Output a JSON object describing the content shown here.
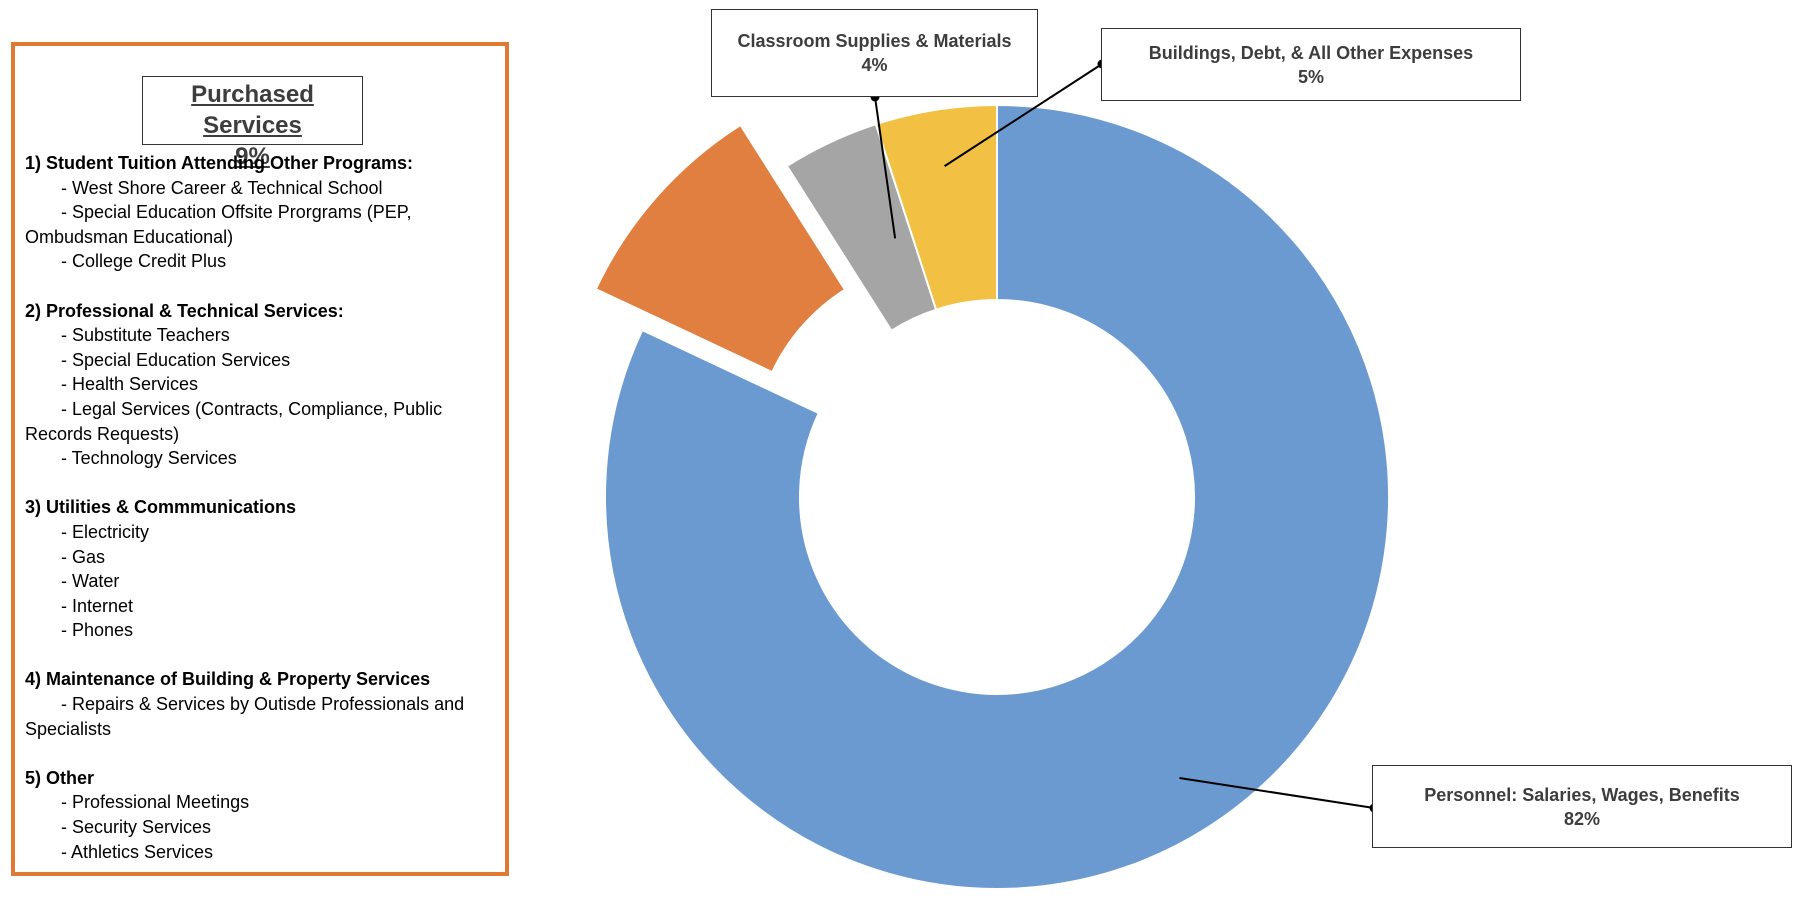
{
  "panel": {
    "title_line1": "Purchased Services",
    "title_line2": "9%",
    "sections": [
      {
        "title": "1) Student Tuition Attending Other Programs:",
        "items": [
          "- West Shore Career & Technical School",
          "- Special Education Offsite Prorgrams (PEP, Ombudsman Educational)",
          "- College Credit Plus"
        ]
      },
      {
        "title": "2) Professional & Technical Services:",
        "items": [
          "- Substitute Teachers",
          "- Special Education Services",
          "- Health Services",
          "- Legal Services (Contracts, Compliance, Public Records Requests)",
          "- Technology Services"
        ]
      },
      {
        "title": "3) Utilities & Commmunications",
        "items": [
          "- Electricity",
          "- Gas",
          "- Water",
          "- Internet",
          "- Phones"
        ]
      },
      {
        "title": "4) Maintenance of Building & Property Services",
        "items": [
          "- Repairs & Services by Outisde Professionals and Specialists"
        ]
      },
      {
        "title": "5) Other",
        "items": [
          "- Professional Meetings",
          "- Security Services",
          "- Athletics Services"
        ]
      }
    ]
  },
  "chart_data": {
    "type": "pie",
    "donut": true,
    "slices": [
      {
        "label": "Personnel: Salaries, Wages, Benefits",
        "value": 82,
        "display": "82%",
        "color": "#6B9AD1"
      },
      {
        "label": "Purchased Services",
        "value": 9,
        "display": "9%",
        "color": "#E07F40",
        "exploded": true
      },
      {
        "label": "Classroom Supplies & Materials",
        "value": 4,
        "display": "4%",
        "color": "#A5A5A5"
      },
      {
        "label": "Buildings, Debt, & All Other Expenses",
        "value": 5,
        "display": "5%",
        "color": "#F2C143"
      }
    ]
  }
}
